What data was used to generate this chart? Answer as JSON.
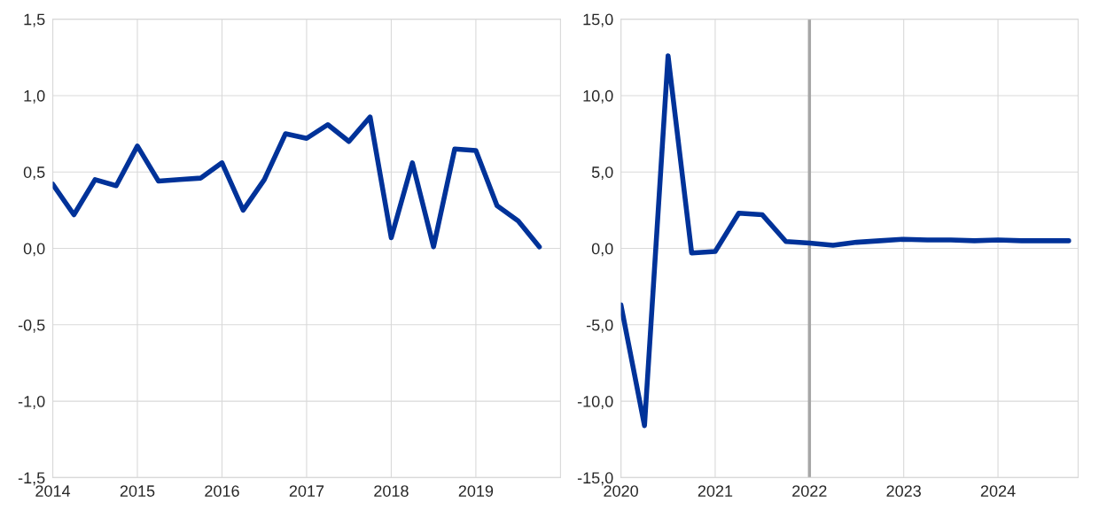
{
  "chart_data": [
    {
      "type": "line",
      "x": [
        2014,
        2014.25,
        2014.5,
        2014.75,
        2015,
        2015.25,
        2015.5,
        2015.75,
        2016,
        2016.25,
        2016.5,
        2016.75,
        2017,
        2017.25,
        2017.5,
        2017.75,
        2018,
        2018.25,
        2018.5,
        2018.75,
        2019,
        2019.25,
        2019.5,
        2019.75
      ],
      "series": [
        {
          "color": "#003299",
          "values": [
            0.42,
            0.22,
            0.45,
            0.41,
            0.67,
            0.44,
            0.45,
            0.46,
            0.56,
            0.25,
            0.45,
            0.75,
            0.72,
            0.81,
            0.7,
            0.86,
            0.07,
            0.56,
            0.01,
            0.65,
            0.64,
            0.28,
            0.18,
            0.01
          ]
        }
      ],
      "xlim": [
        2014,
        2020
      ],
      "xticks": [
        2014,
        2015,
        2016,
        2017,
        2018,
        2019
      ],
      "ylim": [
        -1.5,
        1.5
      ],
      "yticks": [
        {
          "value": -1.5,
          "label": "-1,5"
        },
        {
          "value": -1.0,
          "label": "-1,0"
        },
        {
          "value": -0.5,
          "label": "-0,5"
        },
        {
          "value": 0,
          "label": "0,0"
        },
        {
          "value": 0.5,
          "label": "0,5"
        },
        {
          "value": 1.0,
          "label": "1,0"
        },
        {
          "value": 1.5,
          "label": "1,5"
        }
      ],
      "grid": true
    },
    {
      "type": "line",
      "x": [
        2020,
        2020.25,
        2020.5,
        2020.75,
        2021,
        2021.25,
        2021.5,
        2021.75,
        2022,
        2022.25,
        2022.5,
        2022.75,
        2023,
        2023.25,
        2023.5,
        2023.75,
        2024,
        2024.25,
        2024.5,
        2024.75
      ],
      "series": [
        {
          "color": "#003299",
          "values": [
            -3.7,
            -11.6,
            12.6,
            -0.3,
            -0.2,
            2.3,
            2.2,
            0.45,
            0.35,
            0.2,
            0.4,
            0.5,
            0.6,
            0.55,
            0.55,
            0.5,
            0.55,
            0.5,
            0.5,
            0.5
          ]
        }
      ],
      "xlim": [
        2020,
        2024.85
      ],
      "xticks": [
        2020,
        2021,
        2022,
        2023,
        2024
      ],
      "ylim": [
        -15,
        15
      ],
      "yticks": [
        {
          "value": -15,
          "label": "-15,0"
        },
        {
          "value": -10,
          "label": "-10,0"
        },
        {
          "value": -5,
          "label": "-5,0"
        },
        {
          "value": 0,
          "label": "0,0"
        },
        {
          "value": 5,
          "label": "5,0"
        },
        {
          "value": 10,
          "label": "10,0"
        },
        {
          "value": 15,
          "label": "15,0"
        }
      ],
      "ref_lines": [
        {
          "axis": "x",
          "value": 2022,
          "color": "#a6a6a6"
        }
      ],
      "grid": true
    }
  ]
}
